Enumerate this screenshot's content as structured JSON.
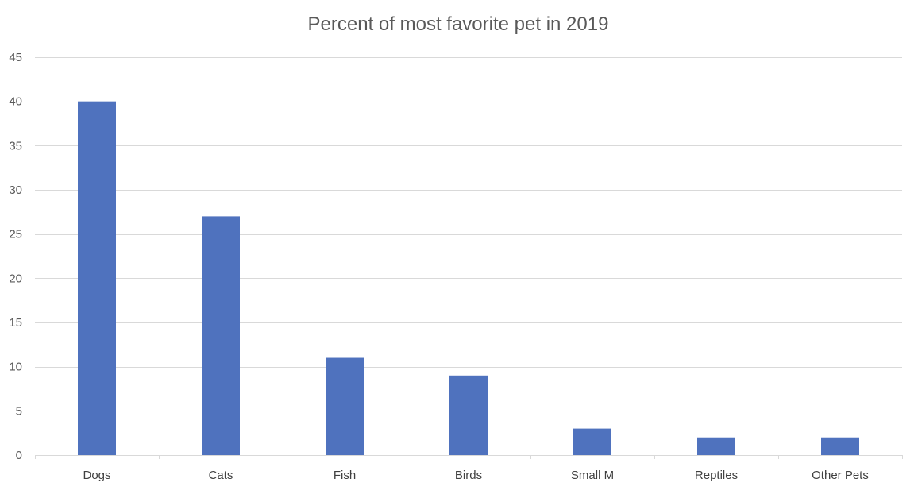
{
  "chart_data": {
    "type": "bar",
    "title": "Percent of most favorite pet in 2019",
    "xlabel": "",
    "ylabel": "",
    "categories": [
      "Dogs",
      "Cats",
      "Fish",
      "Birds",
      "Small M",
      "Reptiles",
      "Other Pets"
    ],
    "values": [
      40,
      27,
      11,
      9,
      3,
      2,
      2
    ],
    "ylim": [
      0,
      45
    ],
    "yticks": [
      0,
      5,
      10,
      15,
      20,
      25,
      30,
      35,
      40,
      45
    ],
    "grid": true,
    "legend": "none",
    "bar_color": "#4f72be"
  }
}
